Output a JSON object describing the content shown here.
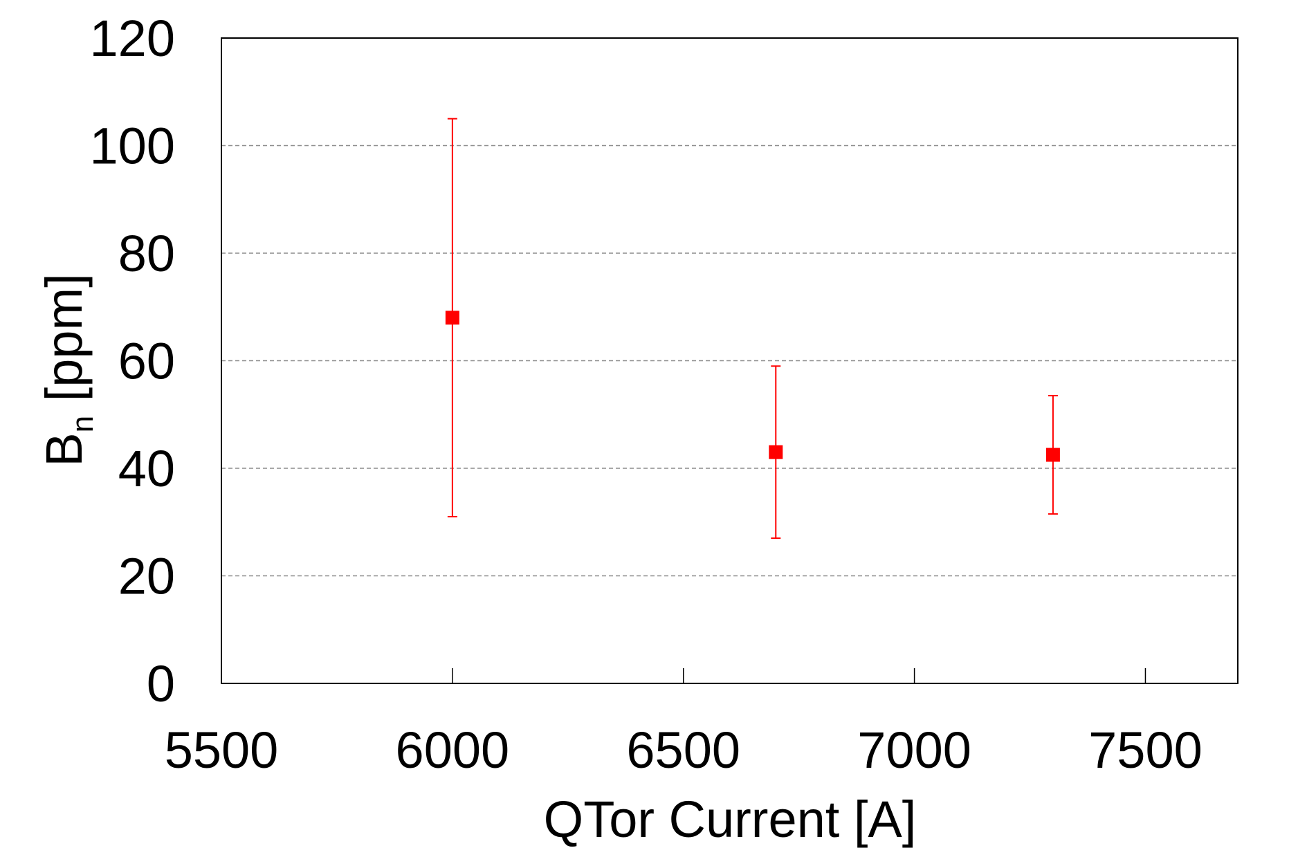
{
  "chart_data": {
    "type": "scatter",
    "title": "",
    "xlabel": "QTor Current [A]",
    "ylabel": {
      "main": "B",
      "subscript": "n",
      "unit": " [ppm]"
    },
    "xlim": [
      5500,
      7700
    ],
    "ylim": [
      0,
      120
    ],
    "xticks": [
      5500,
      6000,
      6500,
      7000,
      7500
    ],
    "yticks": [
      0,
      20,
      40,
      60,
      80,
      100,
      120
    ],
    "grid": {
      "horizontal": true,
      "vertical": false,
      "style": "dashed"
    },
    "legend": "none",
    "series": [
      {
        "color": "#ff0000",
        "marker": "square",
        "points": [
          {
            "x": 6000,
            "y": 68,
            "y_low": 31,
            "y_high": 105
          },
          {
            "x": 6700,
            "y": 43,
            "y_low": 27,
            "y_high": 59
          },
          {
            "x": 7300,
            "y": 42.5,
            "y_low": 31.5,
            "y_high": 53.5
          }
        ]
      }
    ]
  }
}
